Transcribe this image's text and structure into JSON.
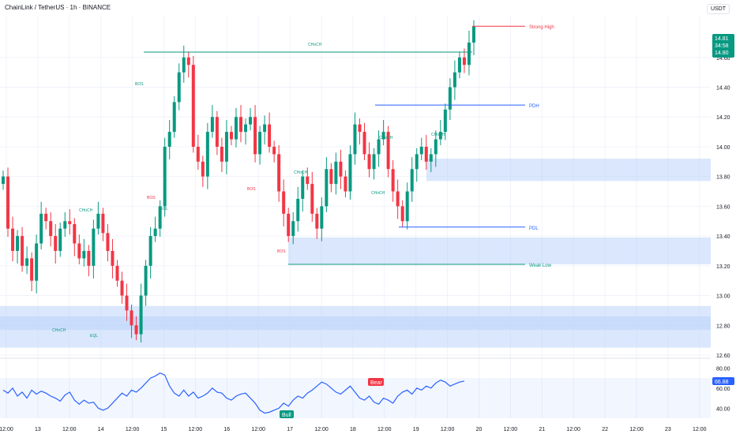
{
  "header": {
    "title": "ChainLink / TetherUS · 1h · BINANCE",
    "currency": "USDT"
  },
  "colors": {
    "up": "#089981",
    "down": "#f23645",
    "zone": "#bcd3fa",
    "rsi": "#2962ff",
    "pdh": "#2962ff"
  },
  "chart_data": [
    {
      "type": "candlestick",
      "title": "ChainLink / TetherUS · 1h · BINANCE",
      "ylim": [
        12.6,
        14.88
      ],
      "y_ticks": [
        "14.60",
        "14.40",
        "14.20",
        "14.00",
        "13.80",
        "13.60",
        "13.40",
        "13.20",
        "13.00",
        "12.80",
        "12.60"
      ],
      "x_ticks": [
        "12:00",
        "13",
        "12:00",
        "14",
        "12:00",
        "15",
        "12:00",
        "16",
        "12:00",
        "17",
        "12:00",
        "18",
        "12:00",
        "19",
        "12:00",
        "20",
        "12:00",
        "21",
        "12:00",
        "22",
        "12:00",
        "23",
        "12:00"
      ],
      "close_series": [
        13.8,
        13.45,
        13.3,
        13.4,
        13.2,
        13.25,
        13.1,
        13.35,
        13.55,
        13.5,
        13.4,
        13.3,
        13.45,
        13.5,
        13.48,
        13.35,
        13.25,
        13.3,
        13.2,
        13.45,
        13.55,
        13.42,
        13.3,
        13.2,
        13.1,
        13.0,
        12.9,
        12.8,
        12.74,
        13.0,
        13.2,
        13.4,
        13.45,
        13.6,
        14.0,
        14.1,
        14.3,
        14.5,
        14.6,
        14.55,
        14.0,
        13.9,
        13.8,
        14.1,
        14.2,
        14.0,
        13.9,
        14.1,
        14.05,
        14.2,
        14.1,
        14.15,
        14.2,
        13.95,
        14.1,
        14.15,
        14.0,
        13.95,
        13.7,
        13.55,
        13.4,
        13.5,
        13.65,
        13.8,
        13.75,
        13.55,
        13.45,
        13.6,
        13.85,
        13.75,
        13.9,
        13.8,
        13.7,
        13.95,
        14.15,
        14.1,
        13.95,
        13.85,
        13.95,
        14.05,
        14.1,
        13.85,
        13.7,
        13.6,
        13.5,
        13.7,
        13.85,
        13.95,
        14.0,
        13.9,
        13.95,
        14.05,
        14.1,
        14.25,
        14.4,
        14.5,
        14.6,
        14.55,
        14.7,
        14.81
      ],
      "price_labels": [
        "14.81",
        "34:58",
        "14.80"
      ],
      "zones": [
        {
          "from": 12.77,
          "to": 12.93
        },
        {
          "from": 12.65,
          "to": 12.86
        },
        {
          "from": 13.21,
          "to": 13.39
        },
        {
          "from": 13.77,
          "to": 13.92
        }
      ],
      "levels": [
        {
          "label": "PDH",
          "value": 14.28
        },
        {
          "label": "PDL",
          "value": 13.46
        },
        {
          "label": "Weak Low",
          "value": 13.21
        },
        {
          "label": "Strong High",
          "value": 14.81
        }
      ],
      "annotations": [
        "CHoCH",
        "BOS",
        "CHoCH",
        "BOS",
        "CHoCH",
        "CHoCH",
        "BOS",
        "CHoCH",
        "BOS",
        "CHoCH",
        "CHoCH",
        "EQL",
        "EQL"
      ]
    },
    {
      "type": "line",
      "name": "RSI",
      "ylim": [
        30,
        85
      ],
      "y_ticks": [
        "80.00",
        "60.00",
        "40.00"
      ],
      "value_label": "66.88",
      "tags": [
        "Bear",
        "Bull"
      ],
      "values": [
        58,
        55,
        60,
        52,
        56,
        50,
        58,
        54,
        57,
        55,
        52,
        50,
        47,
        53,
        56,
        48,
        44,
        48,
        45,
        46,
        40,
        38,
        40,
        45,
        50,
        55,
        52,
        58,
        56,
        60,
        65,
        70,
        72,
        75,
        73,
        62,
        55,
        52,
        58,
        52,
        56,
        50,
        52,
        55,
        60,
        56,
        55,
        50,
        48,
        52,
        54,
        55,
        50,
        45,
        38,
        35,
        36,
        38,
        40,
        45,
        42,
        48,
        52,
        50,
        55,
        58,
        62,
        66,
        64,
        60,
        56,
        54,
        58,
        62,
        56,
        50,
        48,
        52,
        46,
        44,
        50,
        48,
        45,
        52,
        56,
        58,
        54,
        60,
        58,
        62,
        60,
        65,
        68,
        66,
        62,
        64,
        66,
        67
      ]
    }
  ]
}
